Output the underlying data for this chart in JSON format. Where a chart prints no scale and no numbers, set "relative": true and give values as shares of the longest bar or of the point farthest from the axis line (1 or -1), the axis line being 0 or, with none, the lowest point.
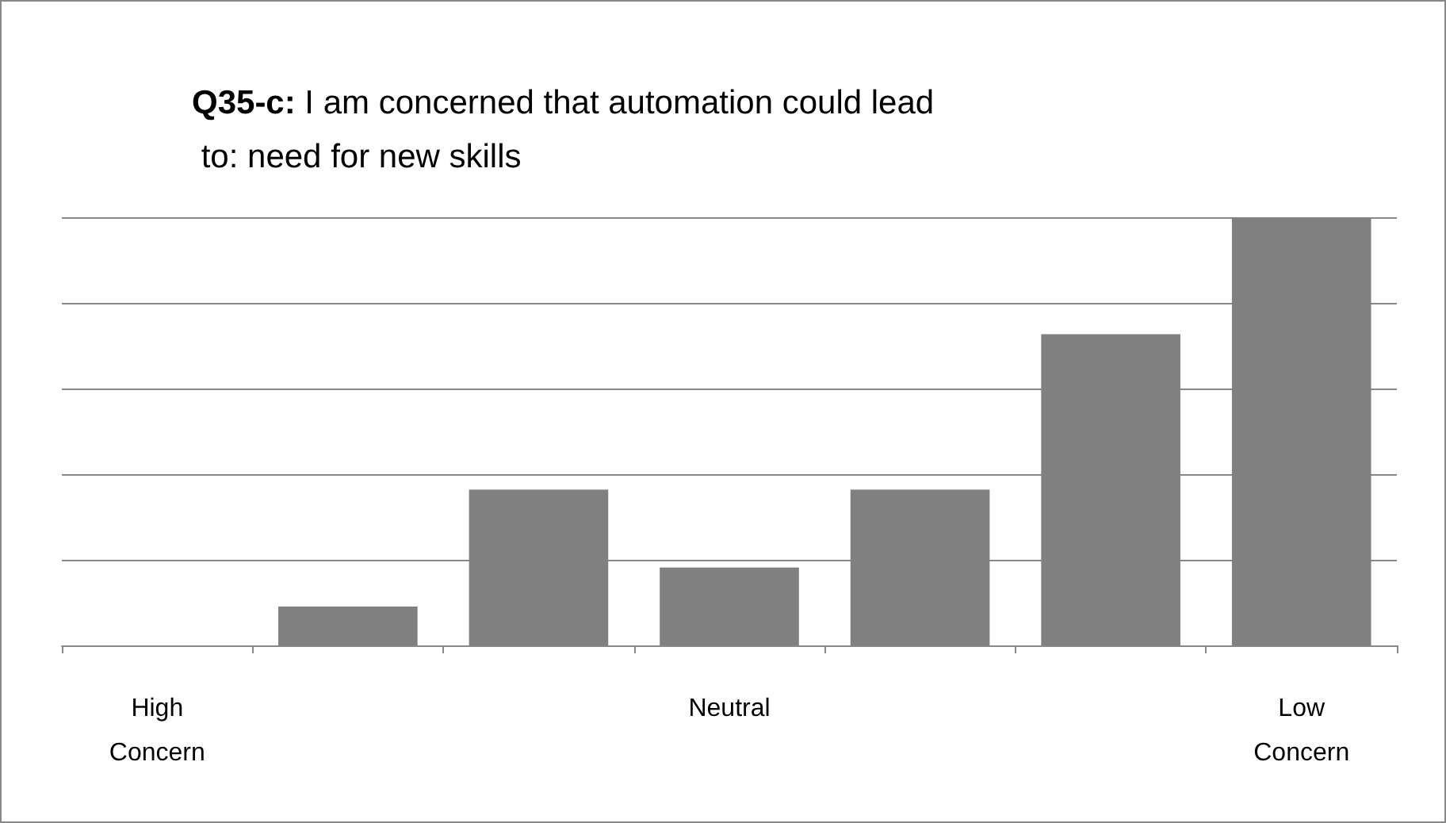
{
  "chart_data": {
    "type": "bar",
    "title": "Q35-c: I am concerned that automation could lead to: need for new skills",
    "categories": [
      "High\nConcern",
      null,
      null,
      "Neutral",
      null,
      null,
      "Low\nConcern"
    ],
    "values": [
      0,
      0.0909,
      0.364,
      0.182,
      0.364,
      0.727,
      1
    ],
    "color": "#808080",
    "relative": true,
    "grid": true
  }
}
